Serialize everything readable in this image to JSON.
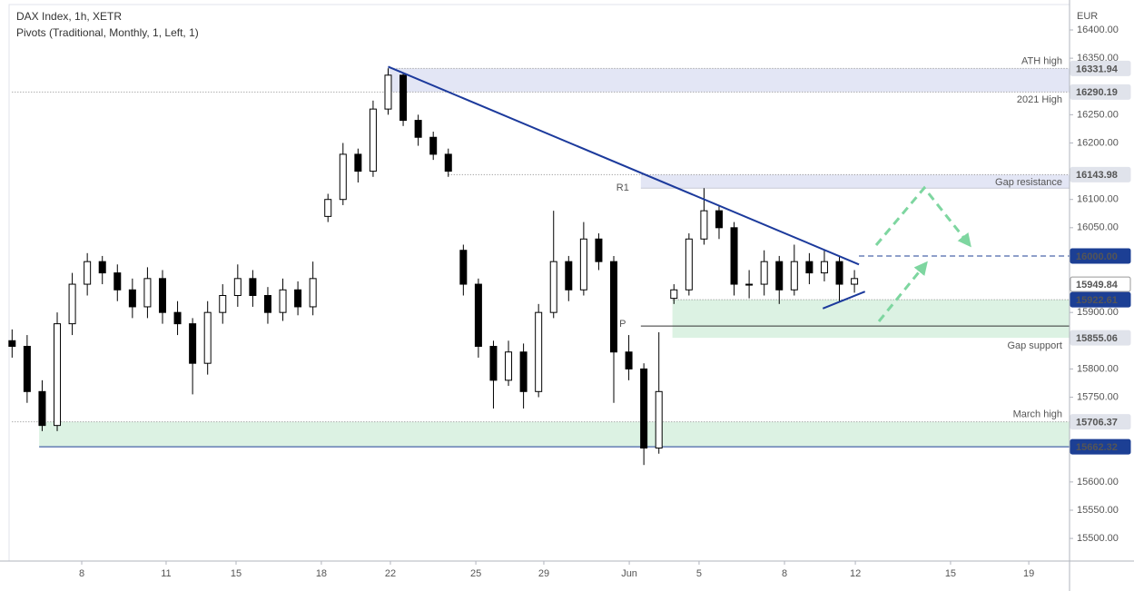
{
  "chart_data": {
    "type": "candlestick",
    "title": "DAX Index, 1h, XETR",
    "subtitle": "Pivots (Traditional, Monthly, 1, Left, 1)",
    "currency": "EUR",
    "xlim": [
      -0.2,
      70.3
    ],
    "ylim": [
      15460,
      16445
    ],
    "xticks": [
      {
        "value": 4.63,
        "label": "8"
      },
      {
        "value": 10.24,
        "label": "11"
      },
      {
        "value": 14.89,
        "label": "15"
      },
      {
        "value": 20.56,
        "label": "18"
      },
      {
        "value": 25.15,
        "label": "22"
      },
      {
        "value": 30.83,
        "label": "25"
      },
      {
        "value": 35.35,
        "label": "29"
      },
      {
        "value": 41.03,
        "label": "Jun"
      },
      {
        "value": 45.67,
        "label": "5"
      },
      {
        "value": 51.35,
        "label": "8"
      },
      {
        "value": 56.06,
        "label": "12"
      },
      {
        "value": 62.39,
        "label": "15"
      },
      {
        "value": 67.59,
        "label": "19"
      }
    ],
    "yticks": [
      {
        "value": 16400,
        "label": "16400.00"
      },
      {
        "value": 16350,
        "label": "16350.00"
      },
      {
        "value": 16250,
        "label": "16250.00"
      },
      {
        "value": 16200,
        "label": "16200.00"
      },
      {
        "value": 16100,
        "label": "16100.00"
      },
      {
        "value": 16050,
        "label": "16050.00"
      },
      {
        "value": 15900,
        "label": "15900.00"
      },
      {
        "value": 15800,
        "label": "15800.00"
      },
      {
        "value": 15750,
        "label": "15750.00"
      },
      {
        "value": 15600,
        "label": "15600.00"
      },
      {
        "value": 15550,
        "label": "15550.00"
      },
      {
        "value": 15500,
        "label": "15500.00"
      }
    ],
    "open": [
      15850,
      15840,
      15760,
      15700,
      15880,
      15950,
      15990,
      15970,
      15940,
      15910,
      15960,
      15900,
      15880,
      15810,
      15900,
      15930,
      15960,
      15930,
      15900,
      15940,
      15910,
      16070,
      16100,
      16180,
      16150,
      16260,
      16320,
      16240,
      16210,
      16180,
      16010,
      15950,
      15840,
      15780,
      15830,
      15760,
      15900,
      15990,
      15940,
      16030,
      15990,
      15830,
      15800,
      15660,
      15925,
      15940,
      16030,
      16080,
      16050,
      15950,
      15950,
      15990,
      15940,
      15990,
      15970,
      15990,
      15950
    ],
    "high": [
      15870,
      15860,
      15780,
      15900,
      15970,
      16005,
      16000,
      15985,
      15960,
      15980,
      15975,
      15920,
      15890,
      15920,
      15950,
      15985,
      15975,
      15945,
      15960,
      15955,
      15990,
      16110,
      16200,
      16190,
      16275,
      16332,
      16325,
      16250,
      16220,
      16190,
      16020,
      15960,
      15850,
      15850,
      15845,
      15915,
      16080,
      16000,
      16060,
      16040,
      16000,
      15860,
      15810,
      15865,
      15950,
      16040,
      16120,
      16090,
      16060,
      15975,
      16010,
      16000,
      16020,
      16005,
      16010,
      16000,
      15975
    ],
    "low": [
      15820,
      15740,
      15690,
      15690,
      15860,
      15930,
      15950,
      15920,
      15890,
      15890,
      15880,
      15860,
      15755,
      15790,
      15880,
      15910,
      15910,
      15880,
      15885,
      15895,
      15895,
      16060,
      16090,
      16130,
      16140,
      16250,
      16230,
      16195,
      16170,
      16140,
      15930,
      15820,
      15730,
      15770,
      15730,
      15750,
      15890,
      15920,
      15930,
      15975,
      15740,
      15780,
      15630,
      15650,
      15915,
      15930,
      16020,
      16030,
      15930,
      15925,
      15930,
      15915,
      15930,
      15950,
      15955,
      15920,
      15935
    ],
    "close": [
      15840,
      15760,
      15700,
      15880,
      15950,
      15990,
      15970,
      15940,
      15910,
      15960,
      15900,
      15880,
      15810,
      15900,
      15930,
      15960,
      15930,
      15900,
      15940,
      15910,
      15960,
      16100,
      16180,
      16150,
      16260,
      16320,
      16240,
      16210,
      16180,
      16150,
      15950,
      15840,
      15780,
      15830,
      15760,
      15900,
      15990,
      15940,
      16030,
      15990,
      15830,
      15800,
      15660,
      15760,
      15940,
      16030,
      16080,
      16050,
      15950,
      15950,
      15990,
      15940,
      15990,
      15970,
      15990,
      15950,
      15960
    ],
    "up_color": "#ffffff",
    "down_color": "#000000",
    "zones": [
      {
        "from": 25,
        "low": 16290.19,
        "high": 16331.94,
        "color": "#e3e6f5"
      },
      {
        "from": 41.8,
        "low": 16120,
        "high": 16143.98,
        "color": "#e3e6f5"
      },
      {
        "from": 43.9,
        "low": 15855.06,
        "high": 15922.61,
        "color": "#dcf2e3"
      },
      {
        "from": 1.8,
        "low": 15662.32,
        "high": 15706.37,
        "color": "#dcf2e3"
      }
    ],
    "levels": [
      {
        "value": 16331.94,
        "label": "16331.94",
        "name": "ATH high",
        "name_pos": "above",
        "from": 25,
        "line": "dot",
        "color": "#e0e3eb",
        "text_color": "#222"
      },
      {
        "value": 16290.19,
        "label": "16290.19",
        "name": "2021 High",
        "name_pos": "below",
        "from": 0,
        "line": "dot",
        "color": "#e0e3eb",
        "text_color": "#222"
      },
      {
        "value": 16143.98,
        "label": "16143.98",
        "name": "Gap resistance",
        "name_pos": "below",
        "from": 29,
        "line": "dot",
        "color": "#e0e3eb",
        "text_color": "#222"
      },
      {
        "value": 16000,
        "label": "16000.00",
        "from": 56.3,
        "line": "dash",
        "color": "#1c3f94",
        "text_color": "#fff"
      },
      {
        "value": 15949.84,
        "label": "15949.84",
        "from": 70.3,
        "line": "none",
        "color": "#ffffff",
        "text_color": "#222"
      },
      {
        "value": 15922.61,
        "label": "15922.61",
        "from": 43.9,
        "line": "dot",
        "color": "#1c3f94",
        "text_color": "#fff"
      },
      {
        "value": 15855.06,
        "label": "15855.06",
        "name": "Gap support",
        "name_pos": "below",
        "from": 70.3,
        "line": "none",
        "color": "#e0e3eb",
        "text_color": "#222"
      },
      {
        "value": 15706.37,
        "label": "15706.37",
        "name": "March high",
        "name_pos": "above",
        "from": 0,
        "line": "dot",
        "color": "#e0e3eb",
        "text_color": "#222"
      },
      {
        "value": 15662.32,
        "label": "15662.32",
        "from": 1.8,
        "line": "solid",
        "color": "#1c3f94",
        "text_color": "#fff"
      }
    ],
    "pivots": [
      {
        "label": "R1",
        "value": 16120,
        "from": 41.8
      },
      {
        "label": "P",
        "value": 15876,
        "from": 41.8
      }
    ],
    "trendlines": [
      {
        "x": [
          25,
          56.3
        ],
        "y": [
          16335,
          15985
        ],
        "color": "#1c3a9c"
      },
      {
        "x": [
          53.9,
          56.7
        ],
        "y": [
          15907,
          15937
        ],
        "color": "#1c3a9c"
      }
    ]
  }
}
